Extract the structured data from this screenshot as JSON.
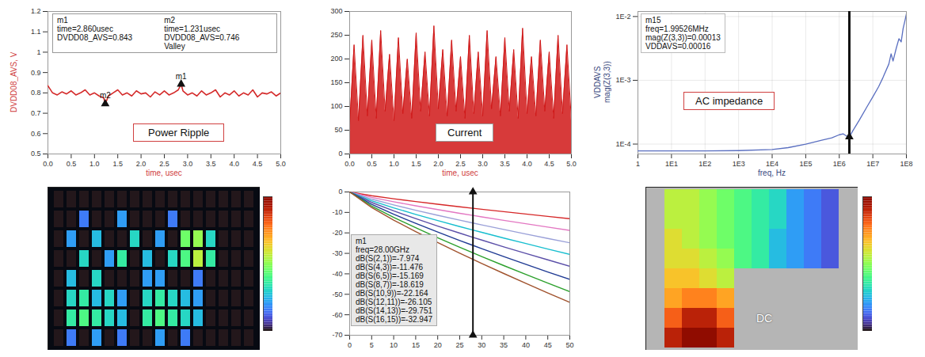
{
  "chart_data": [
    {
      "type": "line",
      "annotation": "Power Ripple",
      "x_label": "time, usec",
      "y_label": "DVDD08_AVS, V",
      "xlim": [
        0,
        5
      ],
      "xticks": [
        {
          "value": 0,
          "label": "0.0"
        },
        {
          "value": 0.5,
          "label": "0.5"
        },
        {
          "value": 1,
          "label": "1.0"
        },
        {
          "value": 1.5,
          "label": "1.5"
        },
        {
          "value": 2,
          "label": "2.0"
        },
        {
          "value": 2.5,
          "label": "2.5"
        },
        {
          "value": 3,
          "label": "3.0"
        },
        {
          "value": 3.5,
          "label": "3.5"
        },
        {
          "value": 4,
          "label": "4.0"
        },
        {
          "value": 4.5,
          "label": "4.5"
        },
        {
          "value": 5,
          "label": "5.0"
        }
      ],
      "ylim": [
        0.5,
        1.2
      ],
      "yticks": [
        0.5,
        0.6,
        0.7,
        0.8,
        0.9,
        1,
        1.1,
        1.2
      ],
      "grid": false,
      "color": "#d42a2a",
      "x": [
        0,
        0.1,
        0.2,
        0.3,
        0.4,
        0.5,
        0.6,
        0.7,
        0.8,
        0.9,
        1,
        1.1,
        1.2,
        1.231,
        1.3,
        1.4,
        1.5,
        1.6,
        1.7,
        1.8,
        1.9,
        2,
        2.1,
        2.2,
        2.3,
        2.4,
        2.5,
        2.6,
        2.7,
        2.8,
        2.86,
        2.9,
        3,
        3.1,
        3.2,
        3.3,
        3.4,
        3.5,
        3.6,
        3.7,
        3.8,
        3.9,
        4,
        4.1,
        4.2,
        4.3,
        4.4,
        4.5,
        4.6,
        4.7,
        4.8,
        4.9,
        5
      ],
      "values": [
        0.835,
        0.8,
        0.79,
        0.805,
        0.795,
        0.81,
        0.79,
        0.8,
        0.815,
        0.79,
        0.8,
        0.785,
        0.775,
        0.746,
        0.785,
        0.8,
        0.815,
        0.79,
        0.8,
        0.785,
        0.81,
        0.795,
        0.8,
        0.78,
        0.805,
        0.79,
        0.81,
        0.79,
        0.8,
        0.815,
        0.843,
        0.81,
        0.79,
        0.8,
        0.785,
        0.81,
        0.79,
        0.8,
        0.815,
        0.78,
        0.8,
        0.79,
        0.81,
        0.785,
        0.8,
        0.79,
        0.815,
        0.78,
        0.8,
        0.795,
        0.805,
        0.785,
        0.8
      ],
      "markers": [
        {
          "name": "m1",
          "x": 2.86,
          "y": 0.843,
          "lines": [
            "time=2.860usec",
            "DVDD08_AVS=0.843"
          ]
        },
        {
          "name": "m2",
          "x": 1.231,
          "y": 0.746,
          "lines": [
            "time=1.231usec",
            "DVDD08_AVS=0.746",
            "Valley"
          ]
        }
      ]
    },
    {
      "type": "area",
      "annotation": "Current",
      "x_label": "time, usec",
      "xlim": [
        0,
        5
      ],
      "xticks": [
        {
          "value": 0,
          "label": "0.0"
        },
        {
          "value": 0.5,
          "label": "0.5"
        },
        {
          "value": 1,
          "label": "1.0"
        },
        {
          "value": 1.5,
          "label": "1.5"
        },
        {
          "value": 2,
          "label": "2.0"
        },
        {
          "value": 2.5,
          "label": "2.5"
        },
        {
          "value": 3,
          "label": "3.0"
        },
        {
          "value": 3.5,
          "label": "3.5"
        },
        {
          "value": 4,
          "label": "4.0"
        },
        {
          "value": 4.5,
          "label": "4.5"
        },
        {
          "value": 5,
          "label": "5.0"
        }
      ],
      "ylim": [
        0,
        300
      ],
      "yticks": [
        0,
        50,
        100,
        150,
        200,
        250,
        300
      ],
      "grid": false,
      "color": "#d01818",
      "x": [
        0,
        0.1,
        0.2,
        0.3,
        0.4,
        0.5,
        0.6,
        0.7,
        0.8,
        0.9,
        1,
        1.1,
        1.2,
        1.3,
        1.4,
        1.5,
        1.6,
        1.7,
        1.8,
        1.9,
        2,
        2.1,
        2.2,
        2.3,
        2.4,
        2.5,
        2.6,
        2.7,
        2.8,
        2.9,
        3,
        3.1,
        3.2,
        3.3,
        3.4,
        3.5,
        3.6,
        3.7,
        3.8,
        3.9,
        4,
        4.1,
        4.2,
        4.3,
        4.4,
        4.5,
        4.6,
        4.7,
        4.8,
        4.9,
        5
      ],
      "values": [
        60,
        230,
        70,
        250,
        80,
        240,
        75,
        260,
        90,
        210,
        70,
        245,
        85,
        200,
        75,
        255,
        90,
        215,
        80,
        270,
        95,
        220,
        80,
        240,
        90,
        205,
        75,
        250,
        85,
        215,
        80,
        260,
        95,
        205,
        80,
        245,
        90,
        220,
        75,
        265,
        85,
        205,
        80,
        240,
        90,
        215,
        75,
        250,
        85,
        230,
        70
      ]
    },
    {
      "type": "line",
      "annotation": "AC impedance",
      "x_label": "freq, Hz",
      "y_label": [
        "VDDAVS",
        "mag(Z(3,3))"
      ],
      "log": true,
      "grid": true,
      "color": "#5a6fc0",
      "xlim": [
        1,
        100000000
      ],
      "xticks": [
        {
          "value": 1,
          "label": "1"
        },
        {
          "value": 10,
          "label": "1E1"
        },
        {
          "value": 100,
          "label": "1E2"
        },
        {
          "value": 1000,
          "label": "1E3"
        },
        {
          "value": 10000,
          "label": "1E4"
        },
        {
          "value": 100000,
          "label": "1E5"
        },
        {
          "value": 1000000,
          "label": "1E6"
        },
        {
          "value": 10000000,
          "label": "1E7"
        },
        {
          "value": 100000000,
          "label": "1E8"
        }
      ],
      "ylim": [
        7e-05,
        0.012
      ],
      "yticks": [
        {
          "value": 0.0001,
          "label": "1E-4"
        },
        {
          "value": 0.001,
          "label": "1E-3"
        },
        {
          "value": 0.01,
          "label": "1E-2"
        }
      ],
      "x": [
        1,
        10,
        100,
        1000,
        10000,
        30000,
        100000,
        300000,
        600000,
        1000000,
        1300000,
        1600000,
        1995260,
        2500000,
        4000000,
        7000000,
        10000000,
        15000000,
        20000000,
        30000000,
        35000000,
        40000000,
        50000000,
        60000000,
        70000000,
        80000000,
        90000000,
        100000000
      ],
      "values": [
        7.8e-05,
        7.8e-05,
        7.8e-05,
        7.9e-05,
        8.2e-05,
        8.8e-05,
        0.0001,
        0.000115,
        0.000125,
        0.00014,
        0.000145,
        0.000135,
        0.00013,
        0.00016,
        0.00024,
        0.0004,
        0.00055,
        0.0008,
        0.0011,
        0.0018,
        0.0026,
        0.002,
        0.0032,
        0.0045,
        0.004,
        0.0065,
        0.0085,
        0.011
      ],
      "markers": [
        {
          "name": "m15",
          "x": 1995260,
          "y": 0.00013,
          "lines": [
            "freq=1.99526MHz",
            "mag(Z(3,3))=0.00013",
            "VDDAVS=0.00016"
          ]
        }
      ]
    },
    {
      "type": "heatmap",
      "tick_labels": false,
      "colorbar_range": [
        0,
        1
      ],
      "cells": [
        [
          0,
          0,
          0,
          0,
          0,
          0,
          0,
          0,
          0,
          0,
          0,
          0,
          0,
          0,
          0,
          0
        ],
        [
          0,
          0,
          0.15,
          0,
          0,
          0.2,
          0,
          0,
          0,
          0.15,
          0,
          0,
          0,
          0,
          0,
          0
        ],
        [
          0,
          0.2,
          0,
          0.25,
          0,
          0,
          0.3,
          0,
          0.2,
          0,
          0.45,
          0.5,
          0.3,
          0,
          0,
          0
        ],
        [
          0,
          0,
          0.3,
          0,
          0.2,
          0.35,
          0,
          0.25,
          0,
          0.3,
          0.4,
          0.55,
          0.35,
          0,
          0,
          0
        ],
        [
          0,
          0.25,
          0,
          0.3,
          0,
          0,
          0,
          0.2,
          0.2,
          0,
          0,
          0.15,
          0,
          0,
          0,
          0
        ],
        [
          0,
          0.3,
          0.35,
          0.25,
          0.3,
          0.2,
          0,
          0.3,
          0.35,
          0.3,
          0.25,
          0.2,
          0,
          0,
          0,
          0
        ],
        [
          0,
          0.35,
          0.4,
          0.35,
          0.3,
          0.25,
          0,
          0.35,
          0.4,
          0.35,
          0.3,
          0.25,
          0,
          0,
          0,
          0
        ],
        [
          0,
          0.15,
          0,
          0.2,
          0,
          0.15,
          0,
          0,
          0.2,
          0,
          0.15,
          0,
          0,
          0,
          0,
          0
        ]
      ]
    },
    {
      "type": "line",
      "grid": false,
      "xlim": [
        0,
        50
      ],
      "xticks": [
        0,
        5,
        10,
        15,
        20,
        25,
        30,
        35,
        40,
        45,
        50
      ],
      "ylim": [
        -70,
        0
      ],
      "yticks": [
        -70,
        -60,
        -50,
        -40,
        -30,
        -20,
        -10,
        0
      ],
      "x": [
        0,
        5,
        10,
        15,
        20,
        25,
        28,
        30,
        35,
        40,
        45,
        50
      ],
      "series": [
        {
          "name": "dB(S(2,1))",
          "color": "#d62728",
          "values": [
            0,
            -1.84,
            -3.33,
            -4.69,
            -5.99,
            -7.24,
            -7.974,
            -8.45,
            -9.64,
            -10.8,
            -11.94,
            -13.05
          ]
        },
        {
          "name": "dB(S(4,3))",
          "color": "#e377c2",
          "values": [
            0,
            -2.65,
            -4.79,
            -6.75,
            -8.62,
            -10.42,
            -11.476,
            -12.16,
            -13.87,
            -15.54,
            -17.18,
            -18.79
          ]
        },
        {
          "name": "dB(S(6,5))",
          "color": "#9aa0d8",
          "values": [
            0,
            -3.5,
            -6.33,
            -8.92,
            -11.39,
            -13.77,
            -15.169,
            -16.08,
            -18.34,
            -20.54,
            -22.71,
            -24.83
          ]
        },
        {
          "name": "dB(S(8,7))",
          "color": "#17becf",
          "values": [
            0,
            -4.3,
            -7.76,
            -10.95,
            -13.98,
            -16.91,
            -18.619,
            -19.74,
            -22.51,
            -25.21,
            -27.87,
            -30.48
          ]
        },
        {
          "name": "dB(S(10,9))",
          "color": "#5b4fa8",
          "values": [
            0,
            -5.12,
            -9.24,
            -13.03,
            -16.65,
            -20.12,
            -22.164,
            -23.49,
            -26.8,
            -30.01,
            -33.18,
            -36.28
          ]
        },
        {
          "name": "dB(S(12,11))",
          "color": "#1f3a93",
          "values": [
            0,
            -6.03,
            -10.89,
            -15.35,
            -19.6,
            -23.7,
            -26.105,
            -27.67,
            -31.56,
            -35.35,
            -39.08,
            -42.73
          ]
        },
        {
          "name": "dB(S(14,13))",
          "color": "#2ca02c",
          "values": [
            0,
            -6.87,
            -12.41,
            -17.49,
            -22.34,
            -27.01,
            -29.751,
            -31.54,
            -35.97,
            -40.28,
            -44.54,
            -48.7
          ]
        },
        {
          "name": "dB(S(16,15))",
          "color": "#a0522d",
          "values": [
            0,
            -7.61,
            -13.74,
            -19.37,
            -24.74,
            -29.92,
            -32.947,
            -34.92,
            -39.83,
            -44.61,
            -49.32,
            -53.93
          ]
        }
      ],
      "markers": [
        {
          "name": "m1",
          "x": 28,
          "lines": [
            "freq=28.00GHz",
            "dB(S(2,1))=-7.974",
            "dB(S(4,3))=-11.476",
            "dB(S(6,5))=-15.169",
            "dB(S(8,7))=-18.619",
            "dB(S(10,9))=-22.164",
            "dB(S(12,11))=-26.105",
            "dB(S(14,13))=-29.751",
            "dB(S(16,15))=-32.947"
          ]
        }
      ]
    },
    {
      "type": "heatmap",
      "annotation": "DC",
      "tick_labels": false,
      "colorbar_range": [
        0,
        1
      ],
      "cells": [
        [
          null,
          0.55,
          0.55,
          0.5,
          0.45,
          0.4,
          0.35,
          0.3,
          0.2,
          0.15,
          0.1,
          null
        ],
        [
          null,
          0.55,
          0.55,
          0.5,
          0.45,
          0.4,
          0.35,
          0.3,
          0.2,
          0.15,
          0.1,
          null
        ],
        [
          null,
          0.6,
          0.55,
          0.5,
          0.45,
          0.4,
          0.35,
          0.25,
          0.2,
          0.15,
          0.1,
          null
        ],
        [
          null,
          0.6,
          0.6,
          0.55,
          0.5,
          0.4,
          0.35,
          0.25,
          0.2,
          0.15,
          0.1,
          null
        ],
        [
          null,
          0.65,
          0.65,
          0.6,
          0.55,
          null,
          null,
          null,
          null,
          null,
          null,
          null
        ],
        [
          null,
          0.7,
          0.75,
          0.75,
          0.7,
          null,
          null,
          null,
          null,
          null,
          null,
          null
        ],
        [
          null,
          0.8,
          0.9,
          0.9,
          0.8,
          null,
          null,
          null,
          null,
          null,
          null,
          null
        ],
        [
          null,
          0.9,
          1,
          1,
          0.9,
          null,
          null,
          null,
          null,
          null,
          null,
          null
        ]
      ]
    }
  ]
}
